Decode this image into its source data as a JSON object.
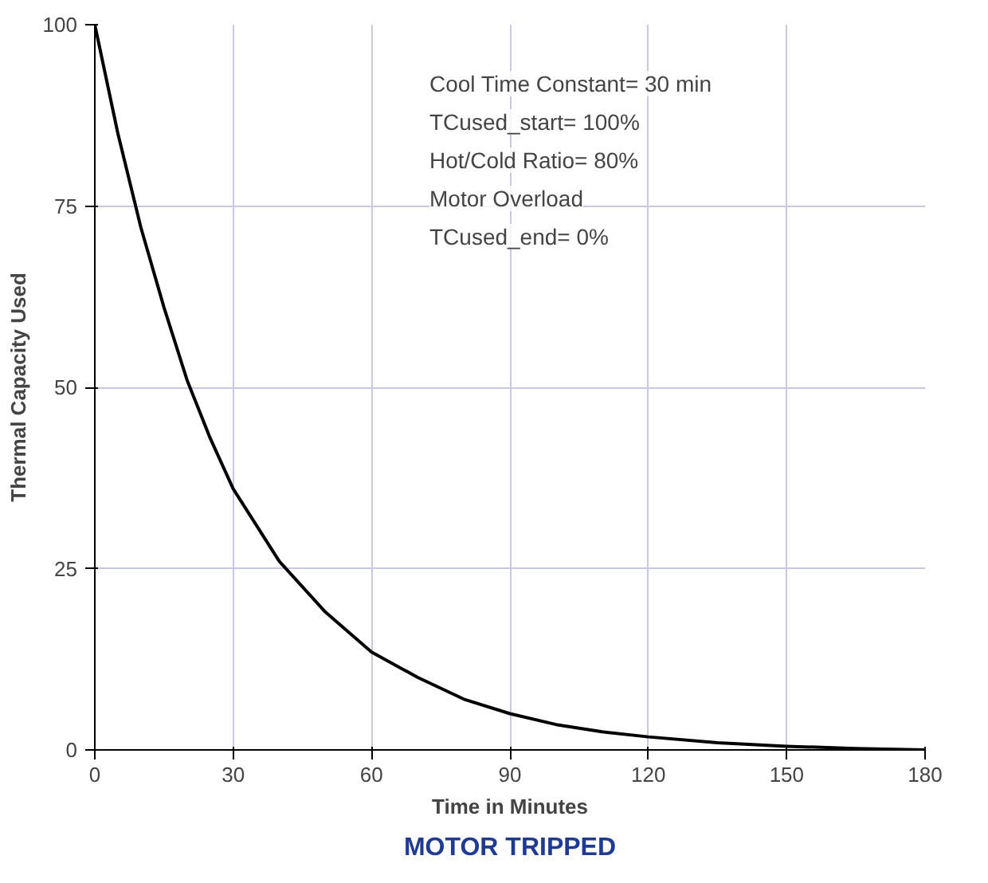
{
  "chart_data": {
    "type": "line",
    "title": "MOTOR TRIPPED",
    "xlabel": "Time in Minutes",
    "ylabel": "Thermal Capacity Used",
    "x": [
      0,
      5,
      10,
      15,
      20,
      25,
      30,
      35,
      40,
      50,
      60,
      70,
      80,
      90,
      100,
      110,
      120,
      135,
      150,
      165,
      180
    ],
    "series": [
      {
        "color": "#000000",
        "values": [
          100,
          85,
          72,
          61,
          51,
          43,
          36,
          31,
          26,
          19,
          13.5,
          10,
          7,
          5,
          3.5,
          2.5,
          1.8,
          1,
          0.5,
          0.2,
          0
        ]
      }
    ],
    "xlim": [
      0,
      180
    ],
    "ylim": [
      0,
      100
    ],
    "xticks": [
      0,
      30,
      60,
      90,
      120,
      150,
      180
    ],
    "yticks": [
      0,
      25,
      50,
      75,
      100
    ],
    "grid": true,
    "marker": "none",
    "line_style": "solid",
    "annotations": [
      "Cool Time Constant= 30 min",
      "TCused_start= 100%",
      "Hot/Cold Ratio= 80%",
      "Motor Overload",
      "TCused_end= 0%"
    ]
  }
}
